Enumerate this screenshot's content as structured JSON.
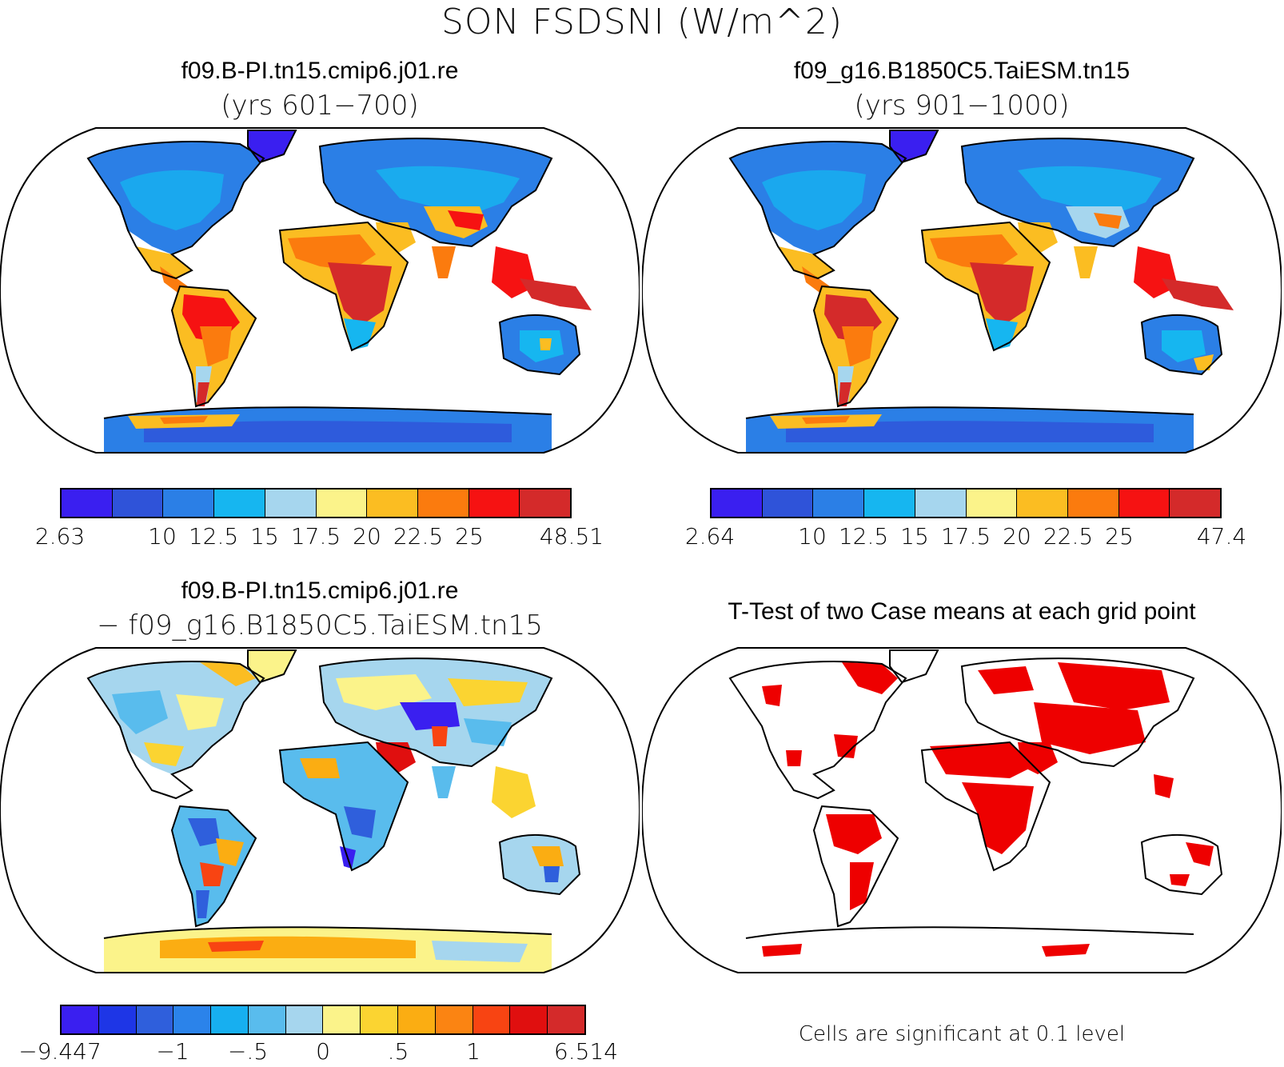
{
  "figure_title": "SON FSDSNI (W/m^2)",
  "panels": {
    "top_left": {
      "title": "f09.B-PI.tn15.cmip6.j01.re",
      "subtitle": "(yrs 601−700)"
    },
    "top_right": {
      "title": "f09_g16.B1850C5.TaiESM.tn15",
      "subtitle": "(yrs 901−1000)"
    },
    "bottom_left": {
      "title": "f09.B-PI.tn15.cmip6.j01.re",
      "subtitle": "− f09_g16.B1850C5.TaiESM.tn15"
    },
    "bottom_right": {
      "title": "T-Test of two Case means at each grid point",
      "note": "Cells are significant at 0.1 level"
    }
  },
  "colorbars": {
    "top_left": {
      "colors": [
        "#3a1ff0",
        "#2f53d9",
        "#2b7fe6",
        "#16b6f0",
        "#a6d6ee",
        "#fbf38a",
        "#fbbd22",
        "#fb7b0e",
        "#f61212",
        "#d42a2a"
      ],
      "labels": [
        "2.63",
        "",
        "10",
        "12.5",
        "15",
        "17.5",
        "20",
        "22.5",
        "25",
        "",
        "48.51"
      ]
    },
    "top_right": {
      "colors": [
        "#3a1ff0",
        "#2f53d9",
        "#2b7fe6",
        "#16b6f0",
        "#a6d6ee",
        "#fbf38a",
        "#fbbd22",
        "#fb7b0e",
        "#f61212",
        "#d42a2a"
      ],
      "labels": [
        "2.64",
        "",
        "10",
        "12.5",
        "15",
        "17.5",
        "20",
        "22.5",
        "25",
        "",
        "47.4"
      ]
    },
    "bottom_left": {
      "colors": [
        "#3a1ff0",
        "#1e36e6",
        "#2f5fdc",
        "#2b83ea",
        "#17aff0",
        "#59bced",
        "#a6d6ee",
        "#fbf38a",
        "#fbd431",
        "#fbad12",
        "#fb8412",
        "#f84412",
        "#e00f0f",
        "#d42a2a"
      ],
      "labels": [
        "−9.447",
        "",
        "",
        "−1",
        "",
        "−.5",
        "",
        "0",
        "",
        ".5",
        "",
        "1",
        "",
        "",
        "6.514"
      ]
    }
  },
  "significance_color": "#ee0000",
  "ocean_color": "#ffffff",
  "coastline_color": "#000000"
}
